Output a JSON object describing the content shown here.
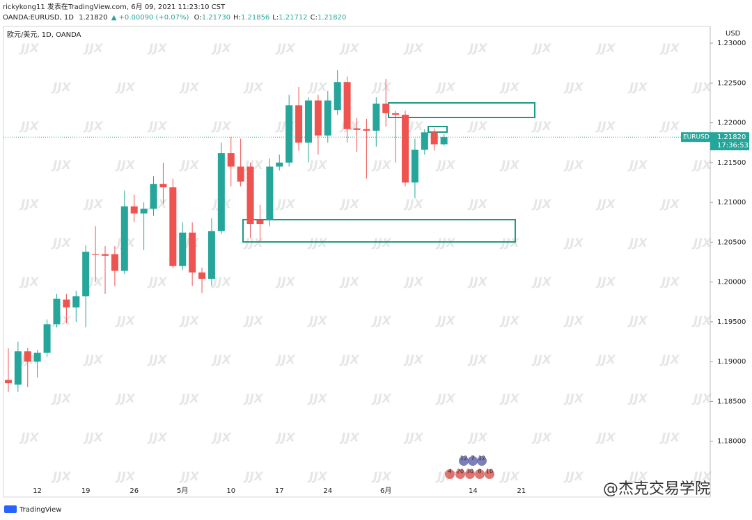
{
  "header": {
    "author": "rickykong11 发表在TradingView.com, 6月 09, 2021 11:23:10 CST",
    "symbol": "OANDA:EURUSD, 1D",
    "last": "1.21820",
    "change": "▲ +0.00090 (+0.07%)",
    "ohlc": [
      {
        "label": "O:",
        "value": "1.21730"
      },
      {
        "label": "H:",
        "value": "1.21856"
      },
      {
        "label": "L:",
        "value": "1.21712"
      },
      {
        "label": "C:",
        "value": "1.21820"
      }
    ]
  },
  "watermark": "JJX",
  "brand": "TradingView",
  "credit": "@杰克交易学院",
  "events": [
    "12",
    "7",
    "12",
    "4",
    "20",
    "30",
    "8",
    "10"
  ],
  "chart_data": {
    "type": "candlestick",
    "title": "欧元/美元, 1D, OANDA",
    "currency": "USD",
    "symbol_tag": "EURUSD",
    "countdown": "17:36:53",
    "up_color": "#26a69a",
    "down_color": "#ef5350",
    "grid": false,
    "ylim": [
      1.1743,
      1.2321
    ],
    "yticks": [
      {
        "value": 1.23,
        "label": "1.23000"
      },
      {
        "value": 1.225,
        "label": "1.22500"
      },
      {
        "value": 1.22,
        "label": "1.22000"
      },
      {
        "value": 1.215,
        "label": "1.21500"
      },
      {
        "value": 1.21,
        "label": "1.21000"
      },
      {
        "value": 1.205,
        "label": "1.20500"
      },
      {
        "value": 1.2,
        "label": "1.20000"
      },
      {
        "value": 1.195,
        "label": "1.19500"
      },
      {
        "value": 1.19,
        "label": "1.19000"
      },
      {
        "value": 1.185,
        "label": "1.18500"
      },
      {
        "value": 1.18,
        "label": "1.18000"
      }
    ],
    "last_price": {
      "value": 1.2182,
      "label": "1.21820"
    },
    "categories": [
      null,
      null,
      null,
      "12",
      null,
      null,
      null,
      null,
      "19",
      null,
      null,
      null,
      null,
      "26",
      null,
      null,
      null,
      null,
      "5月",
      null,
      null,
      null,
      null,
      "10",
      null,
      null,
      null,
      null,
      "17",
      null,
      null,
      null,
      null,
      "24",
      null,
      null,
      null,
      null,
      null,
      "6月",
      null,
      null,
      null,
      null,
      null,
      null,
      null,
      null,
      "14",
      null,
      null,
      null,
      null,
      "21",
      null,
      null,
      null,
      null,
      null,
      null,
      null,
      null,
      null,
      null,
      null,
      null,
      null,
      null,
      null,
      null,
      null,
      null,
      null
    ],
    "open": [
      1.1877,
      1.1871,
      1.1913,
      1.19,
      1.1911,
      1.1947,
      1.1978,
      1.1968,
      1.1982,
      1.2035,
      1.2035,
      1.2035,
      1.2014,
      1.2095,
      1.2086,
      1.2092,
      1.2123,
      1.2119,
      1.202,
      1.2062,
      1.2012,
      1.2004,
      1.2064,
      1.2162,
      1.2145,
      1.2145,
      1.2078,
      1.2078,
      1.2145,
      1.215,
      1.2222,
      1.2175,
      1.2228,
      1.2184,
      1.2216,
      1.2251,
      1.2193,
      1.2192,
      1.219,
      1.2224,
      1.2212,
      1.221,
      1.2125,
      1.2166,
      1.2188,
      1.2173,
      null,
      null,
      null,
      null,
      null,
      null,
      null,
      null,
      null,
      null,
      null,
      null,
      null,
      null,
      null,
      null,
      null,
      null,
      null,
      null,
      null,
      null,
      null,
      null,
      null,
      null,
      null
    ],
    "high": [
      1.1917,
      1.1925,
      1.1917,
      1.1915,
      1.1953,
      1.1985,
      1.1985,
      1.1989,
      1.2046,
      1.207,
      1.2045,
      1.2045,
      1.2115,
      1.211,
      1.21,
      1.2133,
      1.215,
      1.213,
      1.2075,
      1.2075,
      1.2018,
      1.208,
      1.2175,
      1.2182,
      1.218,
      1.215,
      1.2097,
      1.2155,
      1.216,
      1.2235,
      1.2245,
      1.2232,
      1.2235,
      1.224,
      1.2266,
      1.2258,
      1.2206,
      1.2205,
      1.2232,
      1.2255,
      1.2215,
      1.2215,
      1.218,
      1.2192,
      1.2193,
      1.21856,
      null,
      null,
      null,
      null,
      null,
      null,
      null,
      null,
      null,
      null,
      null,
      null,
      null,
      null,
      null,
      null,
      null,
      null,
      null,
      null,
      null,
      null,
      null,
      null,
      null,
      null,
      null
    ],
    "low": [
      1.1862,
      1.1862,
      1.1868,
      1.188,
      1.1906,
      1.1943,
      1.1948,
      1.195,
      1.1943,
      1.2,
      1.1985,
      1.1995,
      1.201,
      1.2075,
      1.204,
      1.2083,
      1.2098,
      1.2017,
      1.2015,
      1.1995,
      1.1986,
      1.1995,
      1.206,
      1.212,
      1.212,
      1.2055,
      1.205,
      1.207,
      1.214,
      1.2145,
      1.2165,
      1.215,
      1.216,
      1.2175,
      1.221,
      1.2175,
      1.2163,
      1.213,
      1.217,
      1.2195,
      1.215,
      1.212,
      1.2105,
      1.216,
      1.2165,
      1.21712,
      null,
      null,
      null,
      null,
      null,
      null,
      null,
      null,
      null,
      null,
      null,
      null,
      null,
      null,
      null,
      null,
      null,
      null,
      null,
      null,
      null,
      null,
      null,
      null,
      null,
      null,
      null
    ],
    "close": [
      1.1873,
      1.1913,
      1.19,
      1.1911,
      1.1947,
      1.1979,
      1.1968,
      1.1982,
      1.2038,
      1.2034,
      1.2033,
      1.2014,
      1.2095,
      1.2086,
      1.2092,
      1.2123,
      1.2119,
      1.202,
      1.2062,
      1.2012,
      1.2004,
      1.2064,
      1.2162,
      1.2145,
      1.2126,
      1.2073,
      1.2073,
      1.2145,
      1.215,
      1.2222,
      1.2175,
      1.2228,
      1.2184,
      1.2228,
      1.2251,
      1.2192,
      1.2191,
      1.219,
      1.2224,
      1.2212,
      1.221,
      1.2125,
      1.2166,
      1.2188,
      1.2173,
      1.2182,
      null,
      null,
      null,
      null,
      null,
      null,
      null,
      null,
      null,
      null,
      null,
      null,
      null,
      null,
      null,
      null,
      null,
      null,
      null,
      null,
      null,
      null,
      null,
      null,
      null,
      null,
      null
    ]
  }
}
